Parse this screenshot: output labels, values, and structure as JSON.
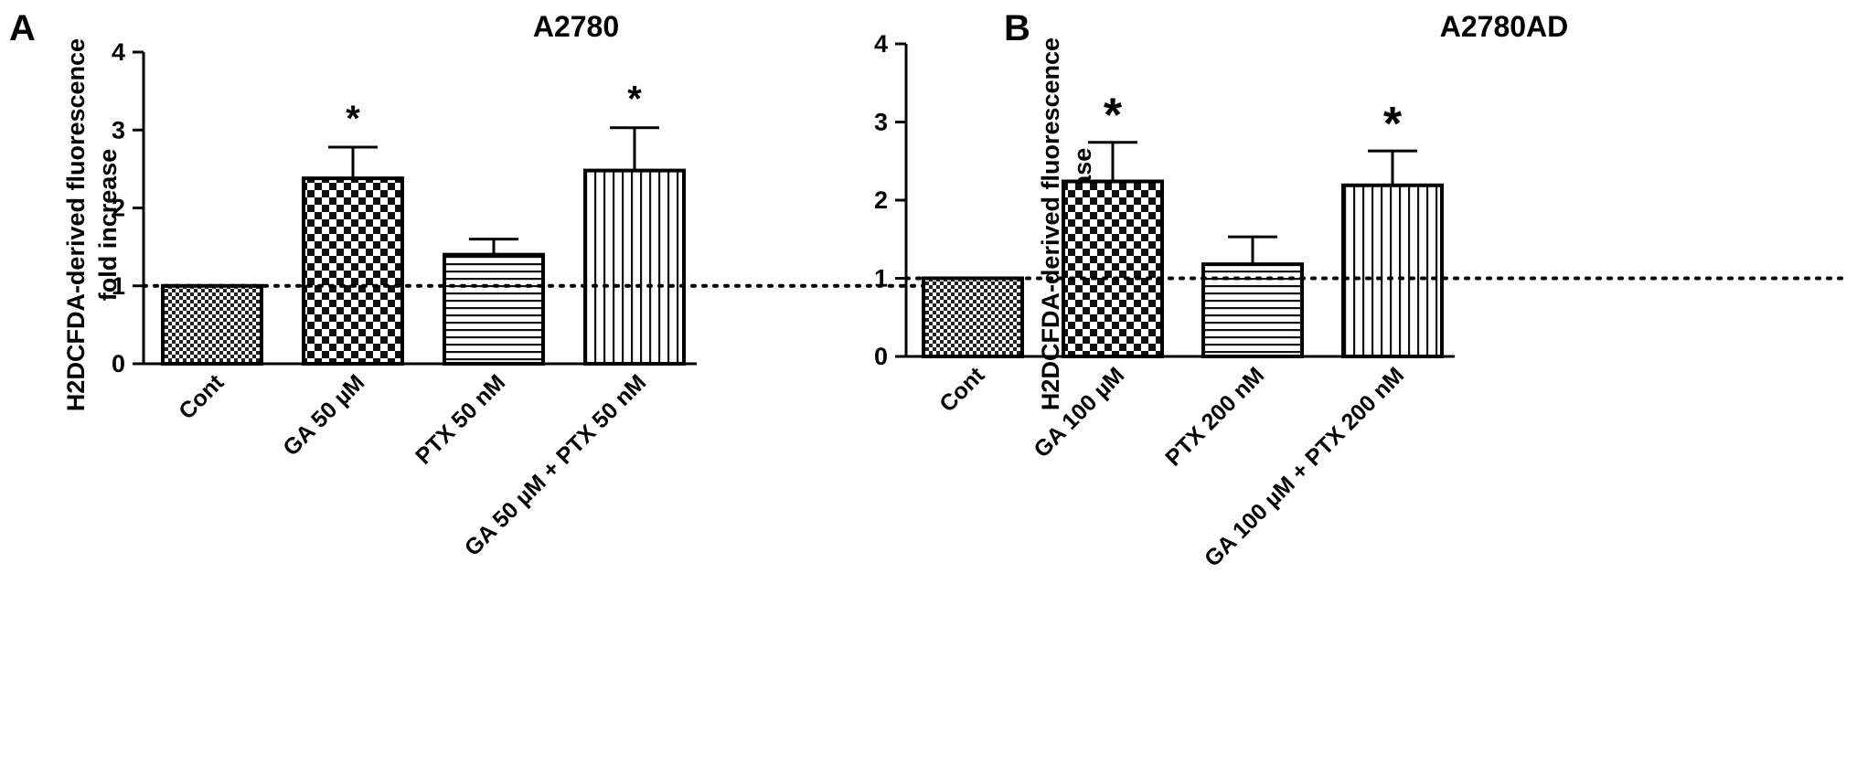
{
  "chart_data": [
    {
      "type": "bar",
      "panel": "A",
      "title": "A2780",
      "ylabel": "H2DCFDA-derived fluorescence fold increase",
      "ylabel_lines": [
        "H2DCFDA-derived fluorescence",
        "fold increase"
      ],
      "categories": [
        "Cont",
        "GA 50 µM",
        "PTX 50 nM",
        "GA 50 µM + PTX 50 nM"
      ],
      "values": [
        1.0,
        2.38,
        1.4,
        2.48
      ],
      "error": [
        0.0,
        0.4,
        0.2,
        0.55
      ],
      "significance": [
        "",
        "*",
        "",
        "*"
      ],
      "patterns": [
        "fine-check",
        "coarse-check",
        "horizontal-lines",
        "vertical-lines"
      ],
      "ylim": [
        0,
        4
      ],
      "yticks": [
        0,
        1,
        2,
        3,
        4
      ],
      "reference_line": 1,
      "grid": false
    },
    {
      "type": "bar",
      "panel": "B",
      "title": "A2780AD",
      "ylabel": "H2DCFDA-derived fluorescence fold increase",
      "ylabel_lines": [
        "H2DCFDA-derived fluorescence",
        "fold increase"
      ],
      "categories": [
        "Cont",
        "GA 100 µM",
        "PTX 200 nM",
        "GA 100 µM + PTX 200 nM"
      ],
      "values": [
        1.0,
        2.24,
        1.18,
        2.19
      ],
      "error": [
        0.0,
        0.5,
        0.35,
        0.44
      ],
      "significance": [
        "",
        "*",
        "",
        "*"
      ],
      "patterns": [
        "fine-check",
        "coarse-check",
        "horizontal-lines",
        "vertical-lines"
      ],
      "ylim": [
        0,
        4
      ],
      "yticks": [
        0,
        1,
        2,
        3,
        4
      ],
      "reference_line": 1,
      "grid": false
    }
  ]
}
